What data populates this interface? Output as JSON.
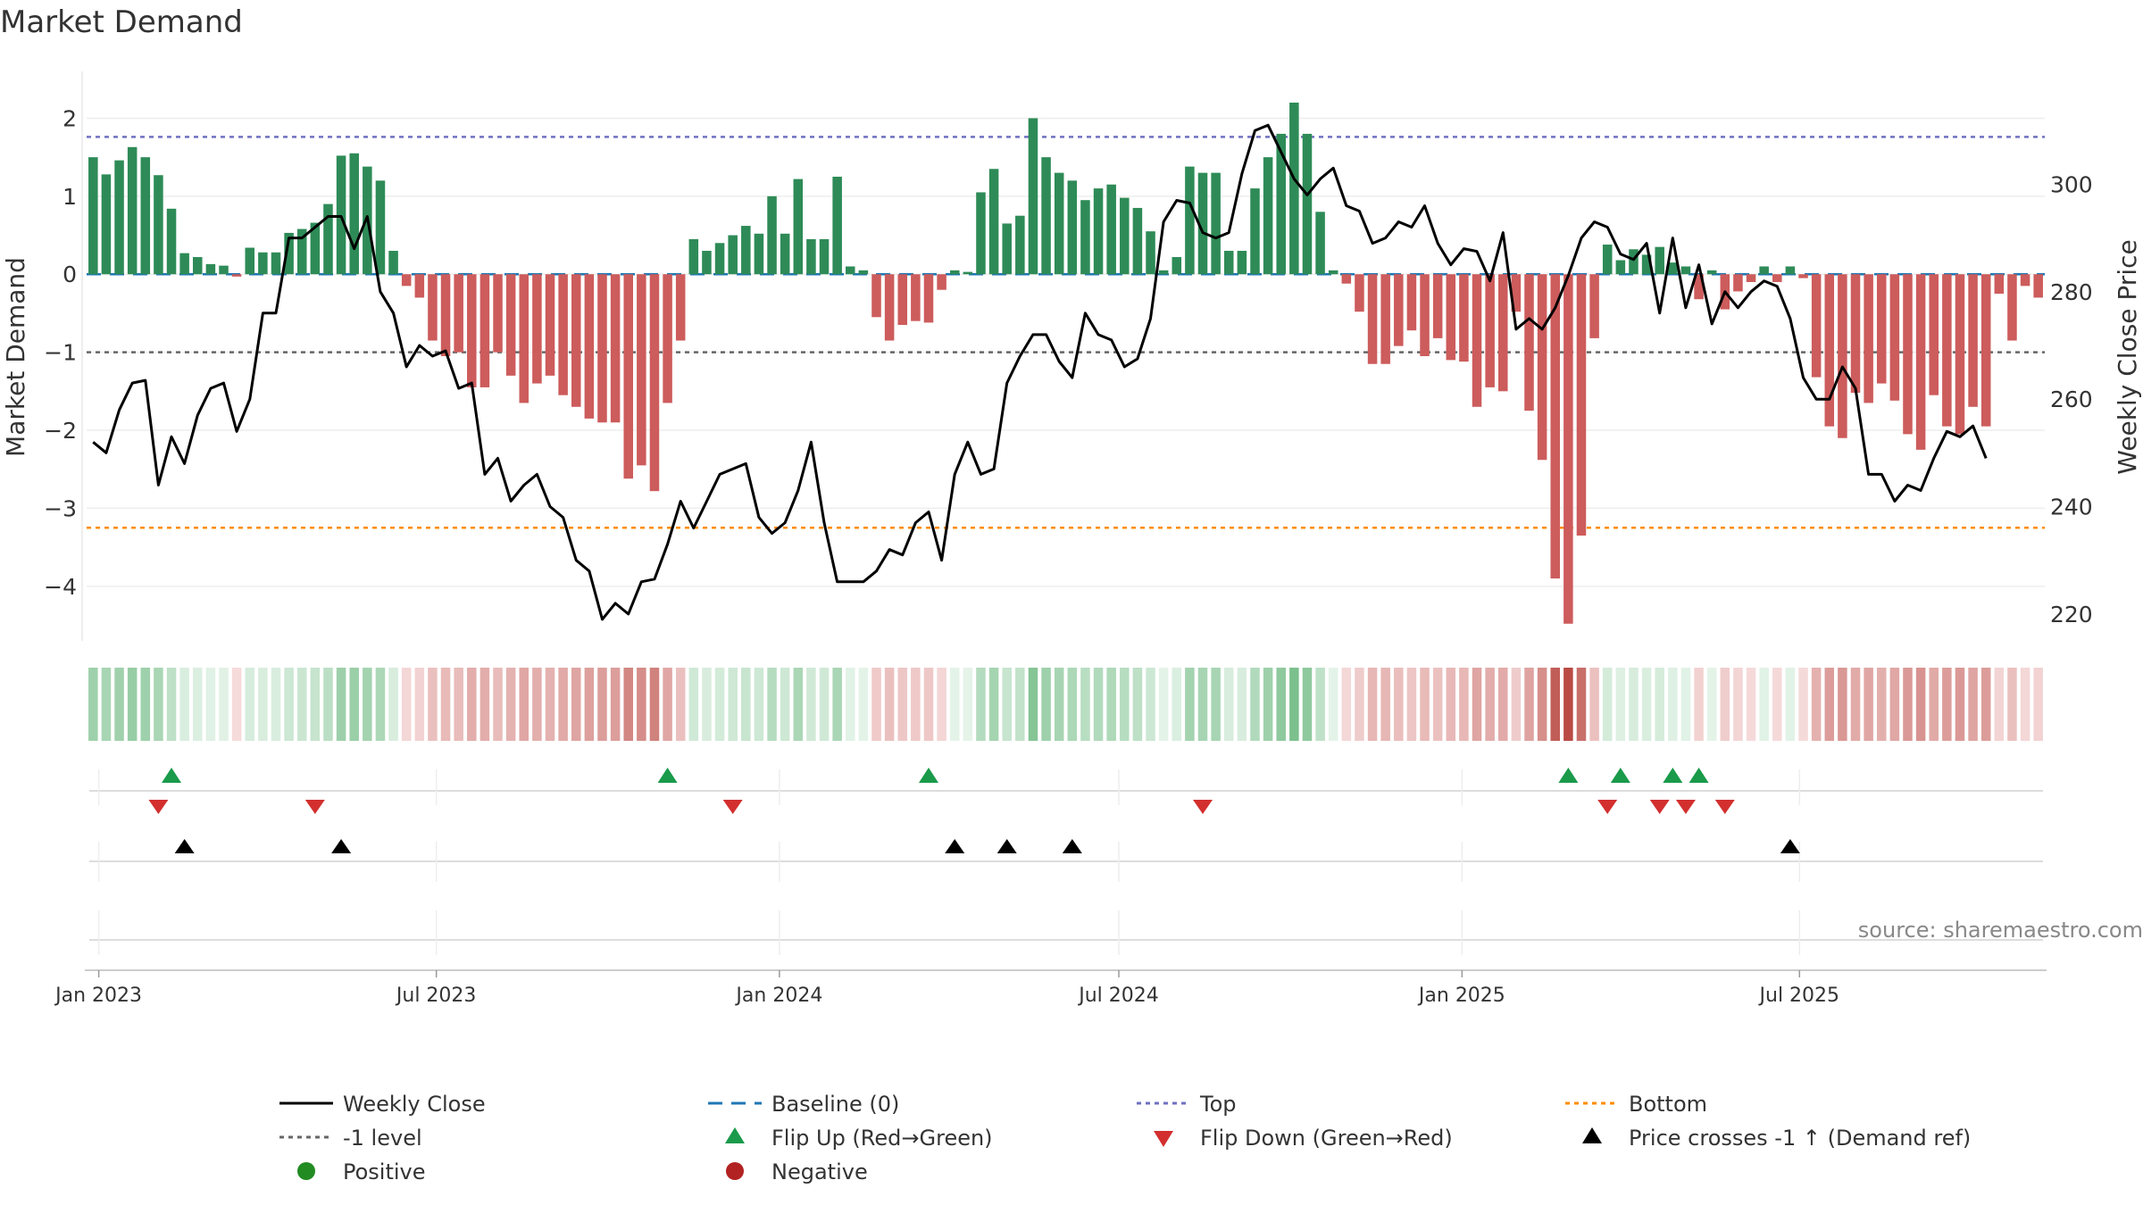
{
  "chart_data": {
    "type": "bar",
    "title": "Market Demand",
    "ylabel": "Market Demand",
    "y2label": "Weekly Close Price",
    "source": "source: sharemaestro.com",
    "ylim": [
      -4.7,
      2.6
    ],
    "y2lim": [
      215,
      321
    ],
    "yticks": [
      "2",
      "1",
      "0",
      "−1",
      "−2",
      "−3",
      "−4"
    ],
    "y2ticks": [
      "300",
      "280",
      "260",
      "240",
      "220"
    ],
    "x_start_week": 0,
    "x_ticks": [
      {
        "label": "Jan 2023",
        "week": 0.43
      },
      {
        "label": "Jul 2023",
        "week": 26.29
      },
      {
        "label": "Jan 2024",
        "week": 52.57
      },
      {
        "label": "Jul 2024",
        "week": 78.57
      },
      {
        "label": "Jan 2025",
        "week": 104.86
      },
      {
        "label": "Jul 2025",
        "week": 130.71
      }
    ],
    "levels": {
      "top": 1.76,
      "bottom": -3.25,
      "minus_one": -1,
      "baseline": 0
    },
    "demand": [
      1.5,
      1.28,
      1.46,
      1.63,
      1.5,
      1.27,
      0.84,
      0.27,
      0.22,
      0.13,
      0.11,
      -0.03,
      0.34,
      0.28,
      0.28,
      0.53,
      0.58,
      0.66,
      0.9,
      1.52,
      1.55,
      1.38,
      1.2,
      0.3,
      -0.15,
      -0.3,
      -0.85,
      -1.05,
      -1.0,
      -1.45,
      -1.45,
      -1.0,
      -1.3,
      -1.65,
      -1.4,
      -1.3,
      -1.55,
      -1.7,
      -1.85,
      -1.9,
      -1.9,
      -2.62,
      -2.45,
      -2.78,
      -1.65,
      -0.85,
      0.45,
      0.3,
      0.4,
      0.5,
      0.62,
      0.52,
      1.0,
      0.52,
      1.22,
      0.45,
      0.45,
      1.25,
      0.1,
      0.05,
      -0.55,
      -0.85,
      -0.65,
      -0.6,
      -0.62,
      -0.2,
      0.05,
      0.03,
      1.05,
      1.35,
      0.65,
      0.75,
      2.0,
      1.5,
      1.3,
      1.2,
      0.95,
      1.1,
      1.15,
      0.98,
      0.85,
      0.55,
      0.05,
      0.22,
      1.38,
      1.3,
      1.3,
      0.3,
      0.3,
      1.1,
      1.5,
      1.8,
      2.2,
      1.8,
      0.8,
      0.05,
      -0.12,
      -0.48,
      -1.15,
      -1.15,
      -0.92,
      -0.72,
      -1.05,
      -0.82,
      -1.1,
      -1.12,
      -1.7,
      -1.45,
      -1.5,
      -0.48,
      -1.75,
      -2.38,
      -3.9,
      -4.48,
      -3.35,
      -0.82,
      0.38,
      0.18,
      0.32,
      0.25,
      0.35,
      0.15,
      0.1,
      -0.32,
      0.05,
      -0.45,
      -0.22,
      -0.1,
      0.1,
      -0.1,
      0.1,
      -0.05,
      -1.32,
      -1.95,
      -2.1,
      -1.52,
      -1.65,
      -1.4,
      -1.62,
      -2.05,
      -2.25,
      -1.55,
      -1.95,
      -2.05,
      -1.7,
      -1.95,
      -0.25,
      -0.85,
      -0.15,
      -0.3
    ],
    "weekly_close": [
      252,
      250,
      258,
      263,
      263.5,
      244,
      253,
      248,
      257,
      262,
      263,
      254,
      260,
      276,
      276,
      290,
      290,
      292,
      294,
      294,
      288,
      294,
      280,
      276,
      266,
      270,
      268,
      269,
      262,
      263,
      246,
      249,
      241,
      244,
      246,
      240,
      238,
      230,
      228,
      219,
      222,
      220,
      226,
      226.5,
      233,
      241,
      236,
      241,
      246,
      247,
      248,
      238,
      235,
      237,
      243,
      252,
      237,
      226,
      226,
      226,
      228,
      232,
      231,
      237,
      239,
      230,
      246,
      252,
      246,
      247,
      263,
      268,
      272,
      272,
      267,
      264,
      276,
      272,
      271,
      266,
      267.5,
      275,
      293,
      297,
      296.5,
      291,
      290,
      291,
      302,
      310,
      311,
      306,
      301,
      298,
      301,
      303,
      296,
      295,
      289,
      290,
      293,
      292,
      296,
      289,
      285,
      288,
      287.5,
      282,
      291,
      273,
      275,
      273,
      277,
      283,
      290,
      293,
      292,
      287,
      286,
      289,
      276,
      290,
      277,
      285,
      274,
      280,
      277,
      280,
      282,
      281,
      275,
      264,
      260,
      260,
      266,
      262,
      246,
      246,
      241,
      244,
      243,
      249,
      254,
      253,
      255,
      249
    ],
    "heat_note": "per-week color strip mirrors demand sign and magnitude",
    "flips_up_weeks": [
      6,
      44,
      64,
      113,
      117,
      121,
      123
    ],
    "flips_down_weeks": [
      5,
      17,
      49,
      85,
      116,
      120,
      122,
      125
    ],
    "price_cross_weeks": [
      7,
      19,
      66,
      70,
      75,
      130
    ]
  },
  "legend": {
    "weekly_close": "Weekly Close",
    "baseline": "Baseline (0)",
    "top": "Top",
    "bottom": "Bottom",
    "minus_one": "-1 level",
    "flip_up": "Flip Up (Red→Green)",
    "flip_down": "Flip Down (Green→Red)",
    "price_cross": "Price crosses -1 ↑ (Demand ref)",
    "positive": "Positive",
    "negative": "Negative"
  },
  "colors": {
    "pos_bar": "#2e8b57",
    "neg_bar": "#cd5c5c",
    "line": "#000000",
    "baseline": "#1f77b4",
    "top": "#7070c0",
    "bottom": "#ff8c00",
    "minus_one": "#666666",
    "flip_up": "#1a9a4a",
    "flip_down": "#d32f2f",
    "positive_dot": "#228b22",
    "negative_dot": "#b22222"
  }
}
